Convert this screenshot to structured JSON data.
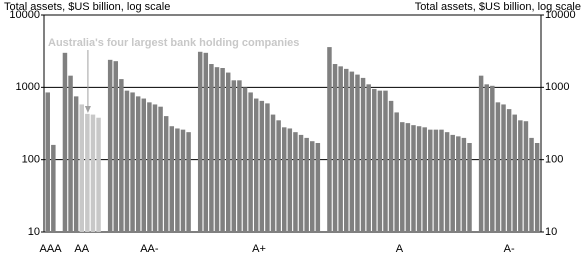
{
  "chart_data": {
    "type": "bar",
    "log_scale": true,
    "ylabel": "Total assets, $US billion, log scale",
    "y2label": "Total assets, $US billion, log scale",
    "annotation": "Australia's four largest bank holding companies",
    "color": "#808080",
    "highlight_color": "#c8c8c8",
    "ylim": [
      10,
      10000
    ],
    "yticks": [
      10,
      100,
      1000,
      10000
    ],
    "grid": true,
    "groups": [
      {
        "label": "AAA",
        "values": [
          850,
          160
        ]
      },
      {
        "label": "AA",
        "values": [
          3000,
          1450,
          750
        ],
        "highlighted": [
          580,
          430,
          420,
          380
        ]
      },
      {
        "label": "AA-",
        "values": [
          2400,
          2300,
          1300,
          900,
          850,
          750,
          700,
          620,
          580,
          540,
          400,
          290,
          270,
          260,
          240
        ]
      },
      {
        "label": "A+",
        "values": [
          3100,
          3000,
          2100,
          1900,
          1850,
          1600,
          1250,
          1250,
          1000,
          850,
          700,
          650,
          600,
          420,
          350,
          280,
          270,
          240,
          220,
          200,
          180,
          170
        ]
      },
      {
        "label": "A",
        "values": [
          3600,
          2100,
          1950,
          1800,
          1650,
          1500,
          1350,
          1100,
          950,
          900,
          900,
          650,
          450,
          330,
          320,
          300,
          290,
          280,
          260,
          260,
          260,
          240,
          220,
          210,
          200,
          170
        ]
      },
      {
        "label": "A-",
        "values": [
          1450,
          1100,
          1050,
          620,
          580,
          500,
          420,
          350,
          340,
          200,
          170
        ]
      }
    ]
  }
}
